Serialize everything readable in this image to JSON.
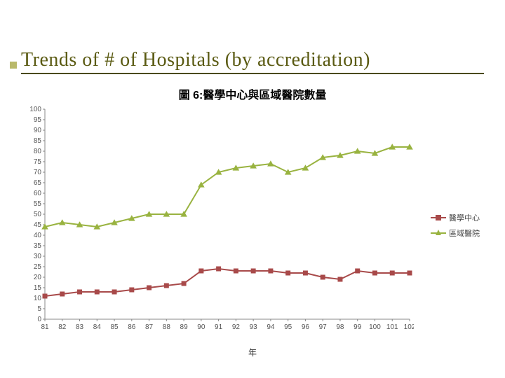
{
  "slide": {
    "title": "Trends of # of Hospitals (by accreditation)",
    "title_color": "#5a5a12",
    "underline_color": "#4a4a10",
    "bullet_color": "#b9b96a",
    "background": "#ffffff"
  },
  "chart": {
    "type": "line",
    "subtitle": "圖 6:醫學中心與區域醫院數量",
    "xaxis_title": "年",
    "x_labels": [
      "81",
      "82",
      "83",
      "84",
      "85",
      "86",
      "87",
      "88",
      "89",
      "90",
      "91",
      "92",
      "93",
      "94",
      "95",
      "96",
      "97",
      "98",
      "99",
      "100",
      "101",
      "102"
    ],
    "ylim": [
      0,
      100
    ],
    "ytick_step": 5,
    "y_ticks": [
      0,
      5,
      10,
      15,
      20,
      25,
      30,
      35,
      40,
      45,
      50,
      55,
      60,
      65,
      70,
      75,
      80,
      85,
      90,
      95,
      100
    ],
    "grid": false,
    "axis_color": "#888888",
    "tick_font_size": 10,
    "tick_color": "#555555",
    "plot_background": "#ffffff",
    "series": [
      {
        "name": "醫學中心",
        "legend_label": "醫學中心",
        "color": "#a84a4a",
        "marker": "square",
        "marker_size": 7,
        "line_width": 2,
        "values": [
          11,
          12,
          13,
          13,
          13,
          14,
          15,
          16,
          17,
          23,
          24,
          23,
          23,
          23,
          22,
          22,
          20,
          19,
          23,
          22,
          22,
          22
        ]
      },
      {
        "name": "區域醫院",
        "legend_label": "區域醫院",
        "color": "#99b340",
        "marker": "triangle",
        "marker_size": 8,
        "line_width": 2,
        "values": [
          44,
          46,
          45,
          44,
          46,
          48,
          50,
          50,
          50,
          64,
          70,
          72,
          73,
          74,
          70,
          72,
          77,
          78,
          80,
          79,
          82,
          82
        ]
      }
    ]
  }
}
